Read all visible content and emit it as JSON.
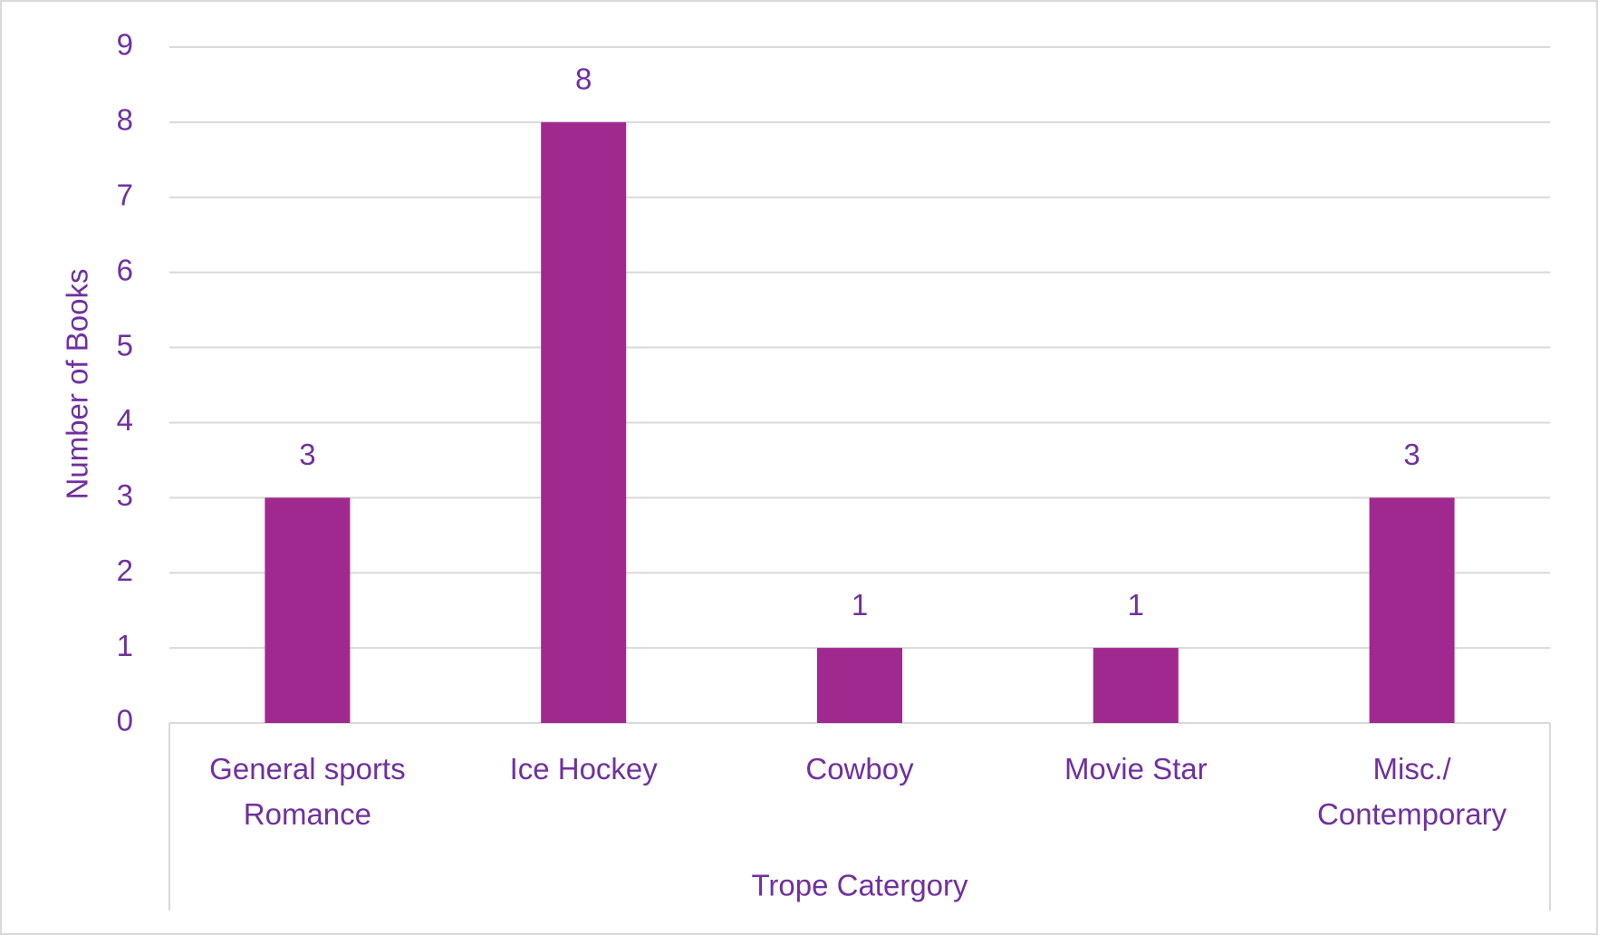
{
  "chart_data": {
    "type": "bar",
    "x_label": "Trope Catergory",
    "y_label": "Number of Books",
    "categories": [
      "General sports Romance",
      "Ice Hockey",
      "Cowboy",
      "Movie Star",
      "Misc./ Contemporary"
    ],
    "values": [
      3,
      8,
      1,
      1,
      3
    ],
    "color": "#a0298f",
    "ylim": [
      0,
      9
    ],
    "yticks": [
      0,
      1,
      2,
      3,
      4,
      5,
      6,
      7,
      8,
      9
    ],
    "grid": true
  }
}
